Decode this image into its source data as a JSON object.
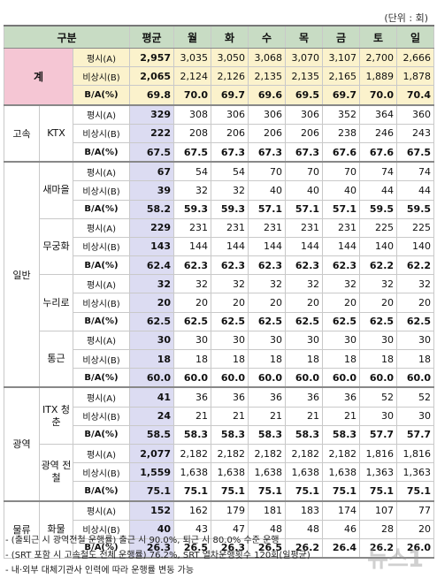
{
  "unit": "(단위 : 회)",
  "header": [
    "구분",
    "",
    "",
    "평균",
    "월",
    "화",
    "수",
    "목",
    "금",
    "토",
    "일"
  ],
  "rows": [
    {
      "cat": "계",
      "sub": "",
      "met": "평시(A)",
      "vals": [
        "2,957",
        "3,035",
        "3,050",
        "3,068",
        "3,070",
        "3,107",
        "2,700",
        "2,666"
      ]
    },
    {
      "cat": "",
      "sub": "",
      "met": "비상시(B)",
      "vals": [
        "2,065",
        "2,124",
        "2,126",
        "2,135",
        "2,135",
        "2,165",
        "1,889",
        "1,878"
      ]
    },
    {
      "cat": "",
      "sub": "",
      "met": "B/A(%)",
      "vals": [
        "69.8",
        "70.0",
        "69.7",
        "69.6",
        "69.5",
        "69.7",
        "70.0",
        "70.4"
      ]
    },
    {
      "cat": "고속",
      "sub": "KTX",
      "met": "평시(A)",
      "vals": [
        "329",
        "308",
        "306",
        "306",
        "306",
        "352",
        "364",
        "360"
      ]
    },
    {
      "cat": "",
      "sub": "",
      "met": "비상시(B)",
      "vals": [
        "222",
        "208",
        "206",
        "206",
        "206",
        "238",
        "246",
        "243"
      ]
    },
    {
      "cat": "",
      "sub": "",
      "met": "B/A(%)",
      "vals": [
        "67.5",
        "67.5",
        "67.3",
        "67.3",
        "67.3",
        "67.6",
        "67.6",
        "67.5"
      ]
    },
    {
      "cat": "일반",
      "sub": "새마을",
      "met": "평시(A)",
      "vals": [
        "67",
        "54",
        "54",
        "70",
        "70",
        "70",
        "74",
        "74"
      ]
    },
    {
      "cat": "",
      "sub": "",
      "met": "비상시(B)",
      "vals": [
        "39",
        "32",
        "32",
        "40",
        "40",
        "40",
        "44",
        "44"
      ]
    },
    {
      "cat": "",
      "sub": "",
      "met": "B/A(%)",
      "vals": [
        "58.2",
        "59.3",
        "59.3",
        "57.1",
        "57.1",
        "57.1",
        "59.5",
        "59.5"
      ]
    },
    {
      "cat": "",
      "sub": "무궁화",
      "met": "평시(A)",
      "vals": [
        "229",
        "231",
        "231",
        "231",
        "231",
        "231",
        "225",
        "225"
      ]
    },
    {
      "cat": "",
      "sub": "",
      "met": "비상시(B)",
      "vals": [
        "143",
        "144",
        "144",
        "144",
        "144",
        "144",
        "140",
        "140"
      ]
    },
    {
      "cat": "",
      "sub": "",
      "met": "B/A(%)",
      "vals": [
        "62.4",
        "62.3",
        "62.3",
        "62.3",
        "62.3",
        "62.3",
        "62.2",
        "62.2"
      ]
    },
    {
      "cat": "",
      "sub": "누리로",
      "met": "평시(A)",
      "vals": [
        "32",
        "32",
        "32",
        "32",
        "32",
        "32",
        "32",
        "32"
      ]
    },
    {
      "cat": "",
      "sub": "",
      "met": "비상시(B)",
      "vals": [
        "20",
        "20",
        "20",
        "20",
        "20",
        "20",
        "20",
        "20"
      ]
    },
    {
      "cat": "",
      "sub": "",
      "met": "B/A(%)",
      "vals": [
        "62.5",
        "62.5",
        "62.5",
        "62.5",
        "62.5",
        "62.5",
        "62.5",
        "62.5"
      ]
    },
    {
      "cat": "",
      "sub": "통근",
      "met": "평시(A)",
      "vals": [
        "30",
        "30",
        "30",
        "30",
        "30",
        "30",
        "30",
        "30"
      ]
    },
    {
      "cat": "",
      "sub": "",
      "met": "비상시(B)",
      "vals": [
        "18",
        "18",
        "18",
        "18",
        "18",
        "18",
        "18",
        "18"
      ]
    },
    {
      "cat": "",
      "sub": "",
      "met": "B/A(%)",
      "vals": [
        "60.0",
        "60.0",
        "60.0",
        "60.0",
        "60.0",
        "60.0",
        "60.0",
        "60.0"
      ]
    },
    {
      "cat": "광역",
      "sub": "ITX 청춘",
      "met": "평시(A)",
      "vals": [
        "41",
        "36",
        "36",
        "36",
        "36",
        "36",
        "52",
        "52"
      ]
    },
    {
      "cat": "",
      "sub": "",
      "met": "비상시(B)",
      "vals": [
        "24",
        "21",
        "21",
        "21",
        "21",
        "21",
        "30",
        "30"
      ]
    },
    {
      "cat": "",
      "sub": "",
      "met": "B/A(%)",
      "vals": [
        "58.5",
        "58.3",
        "58.3",
        "58.3",
        "58.3",
        "58.3",
        "57.7",
        "57.7"
      ]
    },
    {
      "cat": "",
      "sub": "광역 전철",
      "met": "평시(A)",
      "vals": [
        "2,077",
        "2,182",
        "2,182",
        "2,182",
        "2,182",
        "2,182",
        "1,816",
        "1,816"
      ]
    },
    {
      "cat": "",
      "sub": "",
      "met": "비상시(B)",
      "vals": [
        "1,559",
        "1,638",
        "1,638",
        "1,638",
        "1,638",
        "1,638",
        "1,363",
        "1,363"
      ]
    },
    {
      "cat": "",
      "sub": "",
      "met": "B/A(%)",
      "vals": [
        "75.1",
        "75.1",
        "75.1",
        "75.1",
        "75.1",
        "75.1",
        "75.1",
        "75.1"
      ]
    },
    {
      "cat": "물류",
      "sub": "화물",
      "met": "평시(A)",
      "vals": [
        "152",
        "162",
        "179",
        "181",
        "183",
        "174",
        "107",
        "77"
      ]
    },
    {
      "cat": "",
      "sub": "",
      "met": "비상시(B)",
      "vals": [
        "40",
        "43",
        "47",
        "48",
        "48",
        "46",
        "28",
        "20"
      ]
    },
    {
      "cat": "",
      "sub": "",
      "met": "B/A(%)",
      "vals": [
        "26.3",
        "26.5",
        "26.3",
        "26.5",
        "26.2",
        "26.4",
        "26.2",
        "26.0"
      ]
    }
  ],
  "notes": [
    "- (출퇴근 시 광역전철 운행률) 출근 시 90.0%, 퇴근 시 80.0% 수준 운행",
    "- (SRT 포함 시 고속철도 전체 운행률) 76.2%, SRT 열차운행횟수 120회(일평균)",
    "- 내·외부 대체기관사 인력에 따라 운행률 변동 가능"
  ],
  "watermark": "뉴스1"
}
